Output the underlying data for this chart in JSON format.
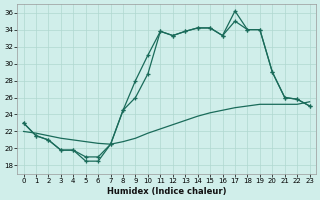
{
  "title": "",
  "xlabel": "Humidex (Indice chaleur)",
  "ylabel": "",
  "xlim": [
    -0.5,
    23.5
  ],
  "ylim": [
    17,
    37
  ],
  "yticks": [
    18,
    20,
    22,
    24,
    26,
    28,
    30,
    32,
    34,
    36
  ],
  "xticks": [
    0,
    1,
    2,
    3,
    4,
    5,
    6,
    7,
    8,
    9,
    10,
    11,
    12,
    13,
    14,
    15,
    16,
    17,
    18,
    19,
    20,
    21,
    22,
    23
  ],
  "bg_color": "#d0eeea",
  "line_color": "#1a6b5a",
  "grid_color": "#b0d8d0",
  "line1_x": [
    0,
    1,
    2,
    3,
    4,
    5,
    6,
    7,
    8,
    9,
    10,
    11,
    12,
    13,
    14,
    15,
    16,
    17,
    18,
    19,
    20,
    21,
    22,
    23
  ],
  "line1_y": [
    23.0,
    21.5,
    21.0,
    19.8,
    19.8,
    18.5,
    18.5,
    20.5,
    24.5,
    28.0,
    31.0,
    33.8,
    33.3,
    33.8,
    34.2,
    34.2,
    33.3,
    36.2,
    34.0,
    34.0,
    29.0,
    26.0,
    25.8,
    25.0
  ],
  "line2_x": [
    0,
    1,
    2,
    3,
    4,
    5,
    6,
    7,
    8,
    9,
    10,
    11,
    12,
    13,
    14,
    15,
    16,
    17,
    18,
    19,
    20,
    21,
    22,
    23
  ],
  "line2_y": [
    23.0,
    21.5,
    21.0,
    19.8,
    19.8,
    19.0,
    19.0,
    20.5,
    24.5,
    26.0,
    28.8,
    33.8,
    33.3,
    33.8,
    34.2,
    34.2,
    33.3,
    35.0,
    34.0,
    34.0,
    29.0,
    26.0,
    25.8,
    25.0
  ],
  "line3_x": [
    0,
    1,
    2,
    3,
    4,
    5,
    6,
    7,
    8,
    9,
    10,
    11,
    12,
    13,
    14,
    15,
    16,
    17,
    18,
    19,
    20,
    21,
    22,
    23
  ],
  "line3_y": [
    22.0,
    21.8,
    21.5,
    21.2,
    21.0,
    20.8,
    20.6,
    20.5,
    20.8,
    21.2,
    21.8,
    22.3,
    22.8,
    23.3,
    23.8,
    24.2,
    24.5,
    24.8,
    25.0,
    25.2,
    25.2,
    25.2,
    25.2,
    25.5
  ]
}
